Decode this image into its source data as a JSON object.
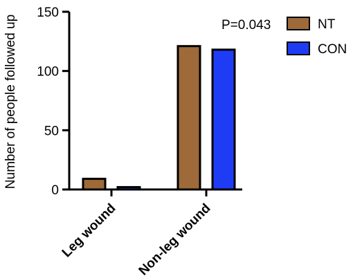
{
  "chart_data": {
    "type": "bar",
    "title": "",
    "xlabel": "",
    "ylabel": "Number of people followed up",
    "ylim": [
      0,
      150
    ],
    "yticks": [
      0,
      50,
      100,
      150
    ],
    "categories": [
      "Leg wound",
      "Non-leg wound"
    ],
    "series": [
      {
        "name": "NT",
        "values": [
          9,
          121
        ],
        "color": "#9e6a3a"
      },
      {
        "name": "CON",
        "values": [
          2,
          118
        ],
        "color": "#1f3cf5"
      }
    ],
    "annotation": "P=0.043",
    "legend_position": "top-right",
    "grid": false
  }
}
